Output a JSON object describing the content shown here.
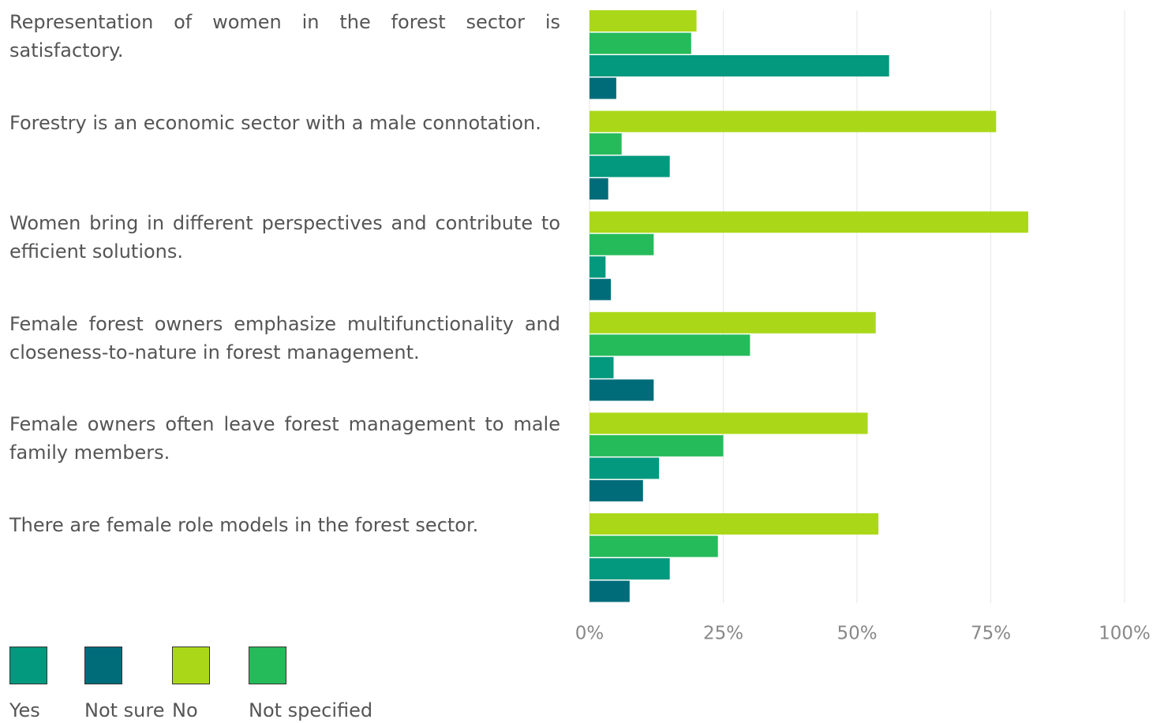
{
  "chart_data": {
    "type": "bar",
    "orientation": "horizontal",
    "categories": [
      "Representation of women in the forest sector is satisfactory.",
      "Forestry is an economic sector with a male connotation.",
      "Women bring in different perspectives and contribute to efficient solutions.",
      "Female forest owners emphasize multifunctionality and closeness-to-nature in forest management.",
      "Female owners often leave forest management to male family members.",
      "There are female role models in the forest sector."
    ],
    "series": [
      {
        "name": "Yes",
        "color": "#03997e",
        "values": [
          56,
          15,
          3,
          4.5,
          13,
          15
        ]
      },
      {
        "name": "Not sure",
        "color": "#006c7a",
        "values": [
          5,
          3.5,
          4,
          12,
          10,
          7.5
        ]
      },
      {
        "name": "No",
        "color": "#aad818",
        "values": [
          20,
          76,
          82,
          53.5,
          52,
          54
        ]
      },
      {
        "name": "Not specified",
        "color": "#26bb5a",
        "values": [
          19,
          6,
          12,
          30,
          25,
          24
        ]
      }
    ],
    "xlim": [
      0,
      100
    ],
    "xticks": [
      {
        "value": 0,
        "label": "0%"
      },
      {
        "value": 25,
        "label": "25%"
      },
      {
        "value": 50,
        "label": "50%"
      },
      {
        "value": 75,
        "label": "75%"
      },
      {
        "value": 100,
        "label": "100%"
      }
    ],
    "grid": true
  }
}
